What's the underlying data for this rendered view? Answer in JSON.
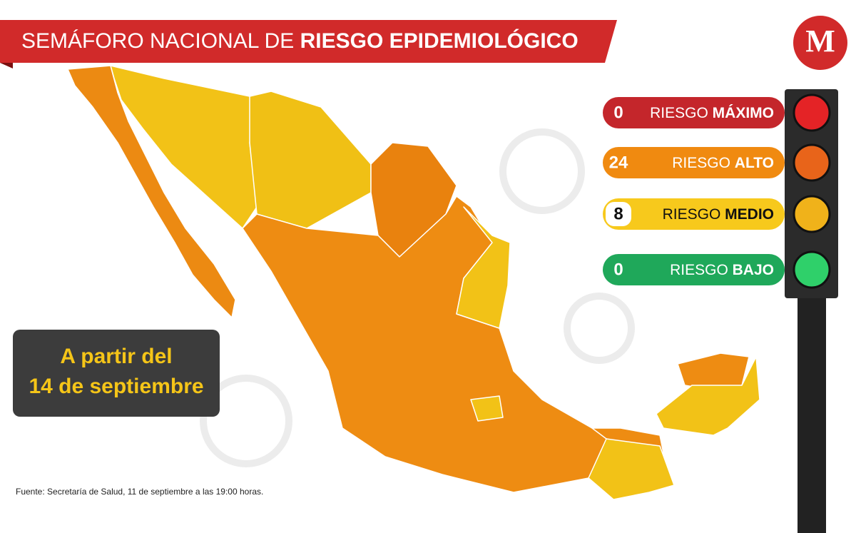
{
  "header": {
    "title_regular": "SEMÁFORO NACIONAL DE",
    "title_bold": "RIESGO EPIDEMIOLÓGICO",
    "logo": "M"
  },
  "legend": [
    {
      "count": "0",
      "label": "RIESGO",
      "level": "MÁXIMO"
    },
    {
      "count": "24",
      "label": "RIESGO",
      "level": "ALTO"
    },
    {
      "count": "8",
      "label": "RIESGO",
      "level": "MEDIO"
    },
    {
      "count": "0",
      "label": "RIESGO",
      "level": "BAJO"
    }
  ],
  "date_box": {
    "line1": "A partir del",
    "line2": "14 de septiembre"
  },
  "source": "Fuente: Secretaría de Salud, 11 de septiembre a las 19:00 horas."
}
